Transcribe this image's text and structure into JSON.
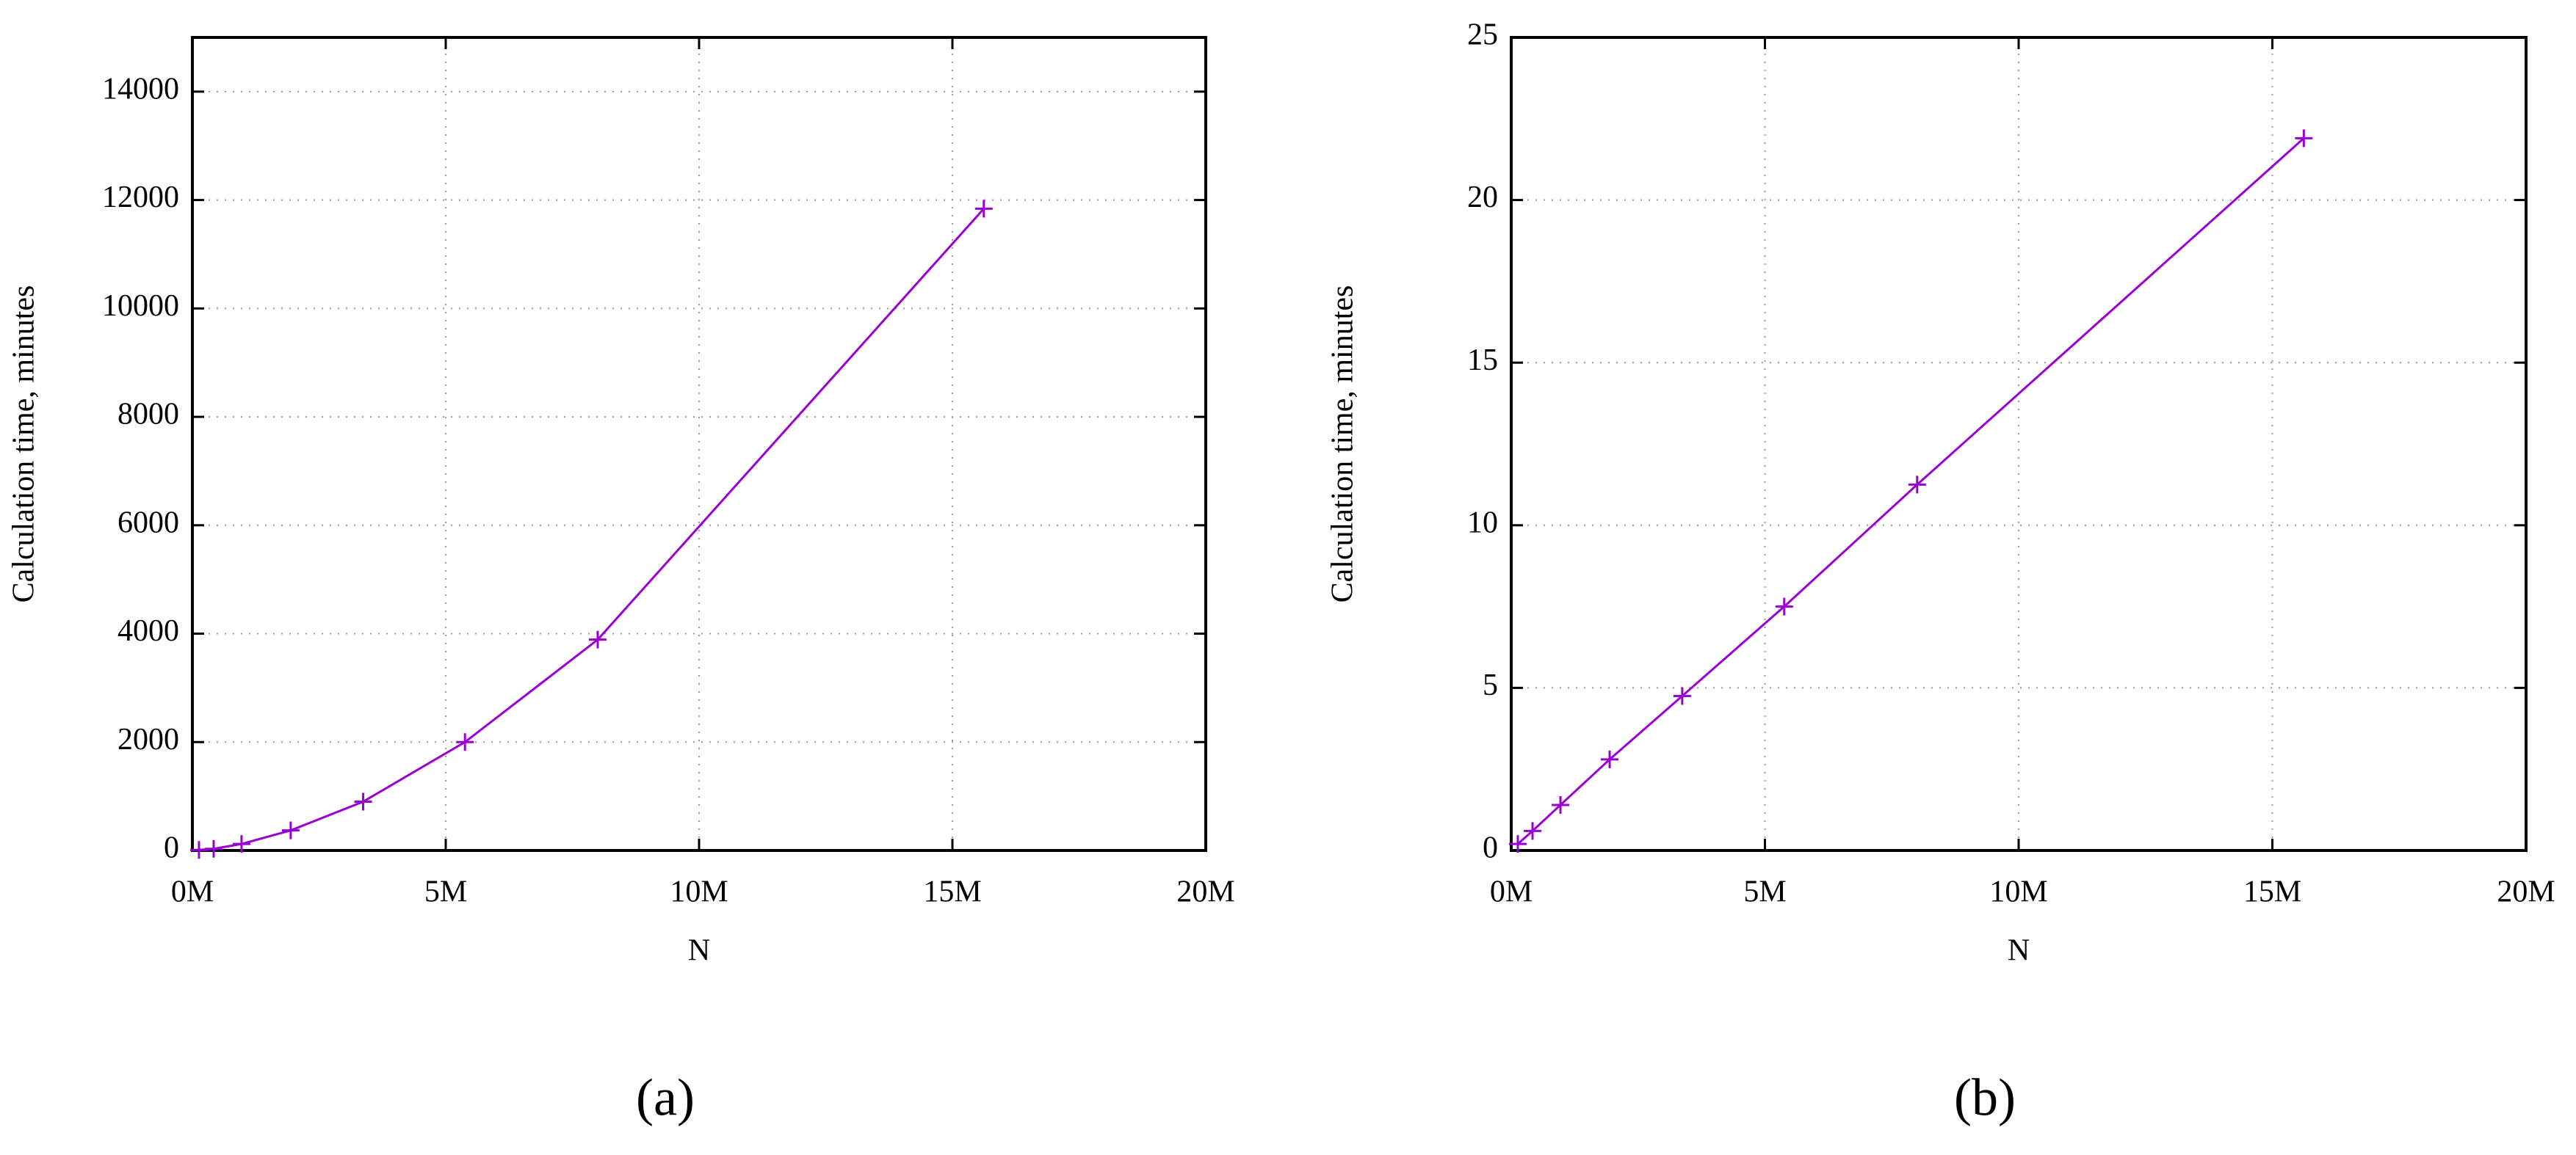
{
  "chart_data": [
    {
      "type": "line",
      "caption": "(a)",
      "x_label": "N",
      "y_label": "Calculation time, minutes",
      "x": [
        130000,
        420000,
        970000,
        1940000,
        3370000,
        5380000,
        8000000,
        15620000
      ],
      "values": [
        10,
        30,
        120,
        370,
        900,
        2000,
        3890,
        11840
      ],
      "color": "#9b00d3",
      "marker": "+",
      "grid": true,
      "xlim": [
        0,
        20000000
      ],
      "xticks": [
        {
          "value": 0,
          "label": "0M"
        },
        {
          "value": 5000000,
          "label": "5M"
        },
        {
          "value": 10000000,
          "label": "10M"
        },
        {
          "value": 15000000,
          "label": "15M"
        },
        {
          "value": 20000000,
          "label": "20M"
        }
      ],
      "ylim": [
        0,
        15000
      ],
      "yticks": [
        0,
        2000,
        4000,
        6000,
        8000,
        10000,
        12000,
        14000
      ]
    },
    {
      "type": "line",
      "caption": "(b)",
      "x_label": "N",
      "y_label": "Calculation time, minutes",
      "x": [
        130000,
        420000,
        970000,
        1940000,
        3370000,
        5380000,
        8000000,
        15620000
      ],
      "values": [
        0.2,
        0.6,
        1.4,
        2.8,
        4.75,
        7.5,
        11.25,
        21.9
      ],
      "color": "#9b00d3",
      "marker": "+",
      "grid": true,
      "xlim": [
        0,
        20000000
      ],
      "xticks": [
        {
          "value": 0,
          "label": "0M"
        },
        {
          "value": 5000000,
          "label": "5M"
        },
        {
          "value": 10000000,
          "label": "10M"
        },
        {
          "value": 15000000,
          "label": "15M"
        },
        {
          "value": 20000000,
          "label": "20M"
        }
      ],
      "ylim": [
        0,
        25
      ],
      "yticks": [
        0,
        5,
        10,
        15,
        20,
        25
      ]
    }
  ]
}
